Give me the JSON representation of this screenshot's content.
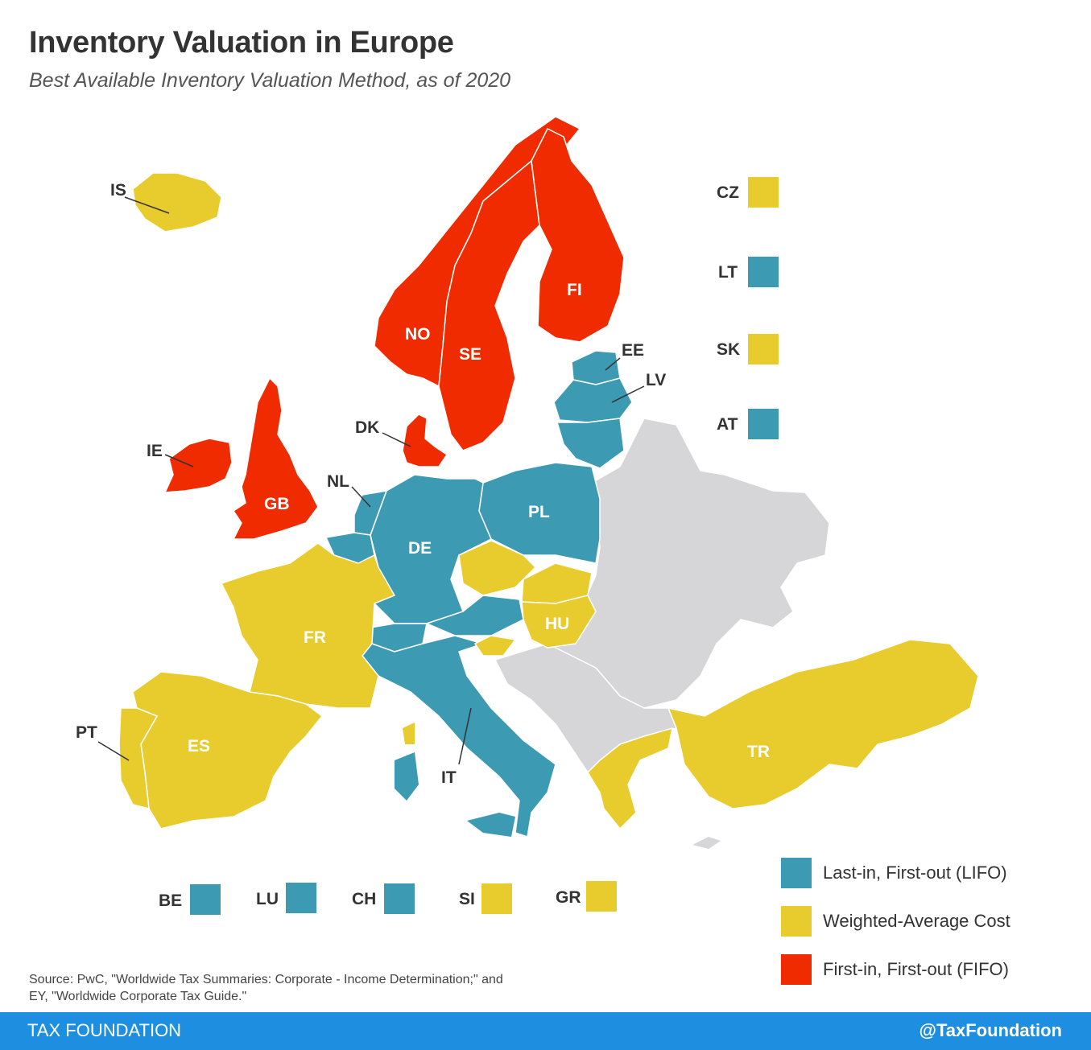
{
  "title": "Inventory Valuation in Europe",
  "subtitle": "Best Available Inventory Valuation Method, as of 2020",
  "colors": {
    "lifo": "#3c9ab2",
    "weighted": "#e8cb2d",
    "fifo": "#f02b00",
    "none": "#d6d6d9",
    "label_dark": "#333333",
    "label_light": "#ffffff",
    "footer": "#1e8fe0"
  },
  "legend": {
    "lifo": "Last-in, First-out (LIFO)",
    "weighted": "Weighted-Average Cost",
    "fifo": "First-in, First-out (FIFO)"
  },
  "countries": {
    "IS": "IS",
    "NO": "NO",
    "SE": "SE",
    "FI": "FI",
    "EE": "EE",
    "LV": "LV",
    "DK": "DK",
    "IE": "IE",
    "GB": "GB",
    "NL": "NL",
    "DE": "DE",
    "PL": "PL",
    "FR": "FR",
    "ES": "ES",
    "PT": "PT",
    "IT": "IT",
    "HU": "HU",
    "TR": "TR"
  },
  "small_states": {
    "CZ": "CZ",
    "LT": "LT",
    "SK": "SK",
    "AT": "AT",
    "BE": "BE",
    "LU": "LU",
    "CH": "CH",
    "SI": "SI",
    "GR": "GR"
  },
  "source": {
    "line1": "Source: PwC, \"Worldwide Tax Summaries: Corporate - Income Determination;\" and",
    "line2": "EY, \"Worldwide Corporate Tax Guide.\""
  },
  "footer": {
    "left": "TAX FOUNDATION",
    "right": "@TaxFoundation"
  }
}
